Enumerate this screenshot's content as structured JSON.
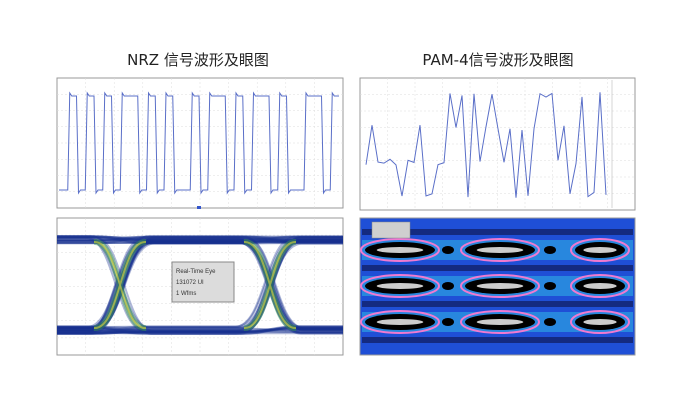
{
  "titles": {
    "nrz": "NRZ 信号波形及眼图",
    "pam4": "PAM-4信号波形及眼图"
  },
  "nrz_eye_label": {
    "lines": [
      "Real-Time Eye",
      "131072 UI",
      "1 Wfms"
    ]
  }
}
